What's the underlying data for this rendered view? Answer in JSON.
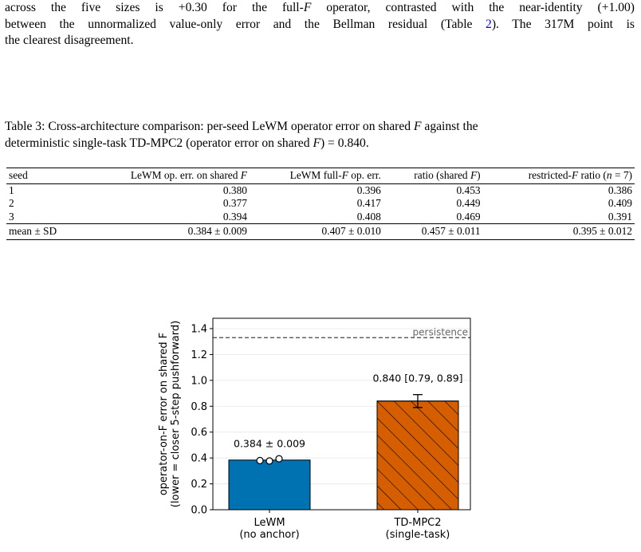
{
  "paragraph": {
    "line1_a": "across the five sizes is +0.30 for the full-",
    "line1_b": "F",
    "line1_c": " operator, contrasted with the near-identity (+1.00)",
    "line2_a": "between the unnormalized value-only error and the Bellman residual (Table ",
    "line2_ref": "2",
    "line2_b": "). The 317M point is",
    "line3": "the clearest disagreement."
  },
  "caption": {
    "line1_a": "Table 3: Cross-architecture comparison: per-seed LeWM operator error on shared ",
    "line1_b": "F",
    "line1_c": " against the",
    "line2_a": "deterministic single-task TD-MPC2 (operator error on shared ",
    "line2_b": "F",
    "line2_c": ") = 0.840."
  },
  "table": {
    "headers": {
      "seed": "seed",
      "col1_a": "LeWM op. err. on shared ",
      "col1_b": "F",
      "col2_a": "LeWM full-",
      "col2_b": "F",
      "col2_c": " op. err.",
      "col3_a": "ratio (shared ",
      "col3_b": "F",
      "col3_c": ")",
      "col4_a": "restricted-",
      "col4_b": "F",
      "col4_c": " ratio (",
      "col4_d": "n",
      "col4_e": " = 7)"
    },
    "rows": [
      {
        "seed": "1",
        "c1": "0.380",
        "c2": "0.396",
        "c3": "0.453",
        "c4": "0.386"
      },
      {
        "seed": "2",
        "c1": "0.377",
        "c2": "0.417",
        "c3": "0.449",
        "c4": "0.409"
      },
      {
        "seed": "3",
        "c1": "0.394",
        "c2": "0.408",
        "c3": "0.469",
        "c4": "0.391"
      }
    ],
    "mean": {
      "seed": "mean ± SD",
      "c1": "0.384 ± 0.009",
      "c2": "0.407 ± 0.010",
      "c3": "0.457 ± 0.011",
      "c4": "0.395 ± 0.012"
    }
  },
  "chart_data": {
    "type": "bar",
    "categories": [
      "LeWM\n(no anchor)",
      "TD-MPC2\n(single-task)"
    ],
    "category_lines": [
      [
        "LeWM",
        "(no anchor)"
      ],
      [
        "TD-MPC2",
        "(single-task)"
      ]
    ],
    "values": [
      0.384,
      0.84
    ],
    "bar_labels": [
      "0.384 ± 0.009",
      "0.840 [0.79, 0.89]"
    ],
    "error_bar": {
      "category": "TD-MPC2\n(single-task)",
      "low": 0.79,
      "high": 0.89
    },
    "seed_points": [
      0.38,
      0.377,
      0.394
    ],
    "reference_line": {
      "label": "persistence",
      "value": 1.33
    },
    "ylabel_line1": "operator-on-F error on shared F",
    "ylabel_line2": "(lower = closer 5-step pushforward)",
    "ylim": [
      0,
      1.48
    ],
    "yticks": [
      0.0,
      0.2,
      0.4,
      0.6,
      0.8,
      1.0,
      1.2,
      1.4
    ],
    "colors": {
      "LeWM": "#0072b2",
      "TD-MPC2": "#d55e00"
    },
    "grid": "horizontal"
  }
}
